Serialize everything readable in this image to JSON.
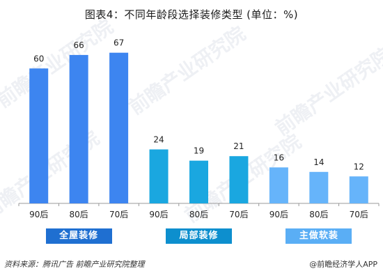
{
  "title": "图表4：不同年龄段选择装修类型 (单位：%)",
  "chart_data": {
    "type": "bar",
    "categories": [
      "90后",
      "80后",
      "70后",
      "90后",
      "80后",
      "70后",
      "90后",
      "80后",
      "70后"
    ],
    "groups": [
      {
        "label": "全屋装修",
        "color": "#1f6fd1",
        "bar_color": "#3d85f0",
        "indices": [
          0,
          1,
          2
        ]
      },
      {
        "label": "局部装修",
        "color": "#0d8fce",
        "bar_color": "#1aa7e0",
        "indices": [
          3,
          4,
          5
        ]
      },
      {
        "label": "主做软装",
        "color": "#5aaef5",
        "bar_color": "#66b4fa",
        "indices": [
          6,
          7,
          8
        ]
      }
    ],
    "values": [
      60,
      66,
      67,
      24,
      19,
      21,
      16,
      14,
      12
    ],
    "ylim": [
      0,
      70
    ],
    "grid": false
  },
  "footer": {
    "source": "资料来源：腾讯广告 前瞻产业研究院整理",
    "brand": "@前瞻经济学人APP"
  },
  "watermark": "前瞻产业研究院"
}
